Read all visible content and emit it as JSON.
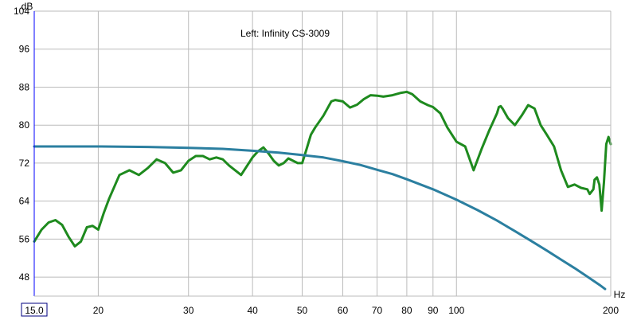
{
  "chart_data": {
    "type": "line",
    "title": "Left: Infinity CS-3009",
    "xlabel": "Hz",
    "ylabel": "dB",
    "x_scale": "log",
    "xlim": [
      15,
      200
    ],
    "ylim": [
      44,
      104
    ],
    "x_ticks": [
      {
        "value": 15,
        "label": "15.0"
      },
      {
        "value": 20,
        "label": "20"
      },
      {
        "value": 30,
        "label": "30"
      },
      {
        "value": 40,
        "label": "40"
      },
      {
        "value": 50,
        "label": "50"
      },
      {
        "value": 60,
        "label": "60"
      },
      {
        "value": 70,
        "label": "70"
      },
      {
        "value": 80,
        "label": "80"
      },
      {
        "value": 90,
        "label": "90"
      },
      {
        "value": 100,
        "label": "100"
      },
      {
        "value": 200,
        "label": "200"
      }
    ],
    "x_gridlines": [
      15,
      20,
      30,
      40,
      50,
      60,
      70,
      80,
      90,
      100,
      200
    ],
    "y_ticks": [
      48,
      56,
      64,
      72,
      80,
      88,
      96,
      104
    ],
    "grid": true,
    "series": [
      {
        "color": "#1e8a1e",
        "x": [
          15,
          15.5,
          16,
          16.5,
          17,
          17.5,
          18,
          18.5,
          19,
          19.5,
          20,
          20.5,
          21,
          22,
          23,
          24,
          25,
          26,
          27,
          28,
          29,
          30,
          31,
          32,
          33,
          34,
          35,
          36,
          38,
          40,
          41,
          42,
          43,
          44,
          45,
          46,
          47,
          48,
          49,
          50,
          51,
          52,
          53,
          55,
          57,
          58,
          60,
          62,
          64,
          66,
          68,
          70,
          72,
          75,
          78,
          80,
          82,
          85,
          88,
          90,
          93,
          96,
          100,
          104,
          108,
          112,
          116,
          120,
          121,
          122,
          123,
          126,
          130,
          134,
          138,
          142,
          146,
          150,
          155,
          160,
          165,
          170,
          175,
          180,
          182,
          185,
          186,
          188,
          190,
          192,
          194,
          196,
          198,
          200
        ],
        "y": [
          55.5,
          58,
          59.5,
          60,
          59,
          56.5,
          54.5,
          55.5,
          58.5,
          58.8,
          58,
          61.5,
          64.5,
          69.5,
          70.5,
          69.5,
          71,
          72.8,
          72,
          70,
          70.5,
          72.5,
          73.5,
          73.5,
          72.8,
          73.2,
          72.8,
          71.5,
          69.5,
          73.2,
          74.5,
          75.3,
          74,
          72.5,
          71.5,
          72,
          73,
          72.5,
          72,
          72,
          75,
          78,
          79.5,
          82,
          85,
          85.3,
          85,
          83.7,
          84.3,
          85.5,
          86.3,
          86.2,
          86,
          86.3,
          86.8,
          87,
          86.5,
          85,
          84.2,
          83.8,
          82.5,
          79.5,
          76.5,
          75.5,
          70.5,
          75,
          79,
          82.5,
          83.8,
          84,
          83.5,
          81.5,
          80,
          82,
          84.2,
          83.5,
          80,
          78,
          75.5,
          70.5,
          67,
          67.5,
          66.8,
          66.5,
          65.5,
          66.5,
          68.5,
          69,
          67.5,
          62,
          68,
          76,
          77.5,
          76
        ]
      },
      {
        "color": "#2b7fa0",
        "x": [
          15,
          20,
          25,
          30,
          35,
          40,
          45,
          50,
          55,
          60,
          65,
          70,
          75,
          80,
          90,
          100,
          110,
          120,
          130,
          140,
          150,
          160,
          170,
          180,
          190,
          195
        ],
        "y": [
          75.5,
          75.5,
          75.4,
          75.2,
          75,
          74.6,
          74.2,
          73.7,
          73.2,
          72.4,
          71.6,
          70.6,
          69.7,
          68.6,
          66.5,
          64.3,
          62.1,
          59.9,
          57.7,
          55.6,
          53.6,
          51.7,
          49.9,
          48.1,
          46.4,
          45.5
        ]
      }
    ]
  }
}
